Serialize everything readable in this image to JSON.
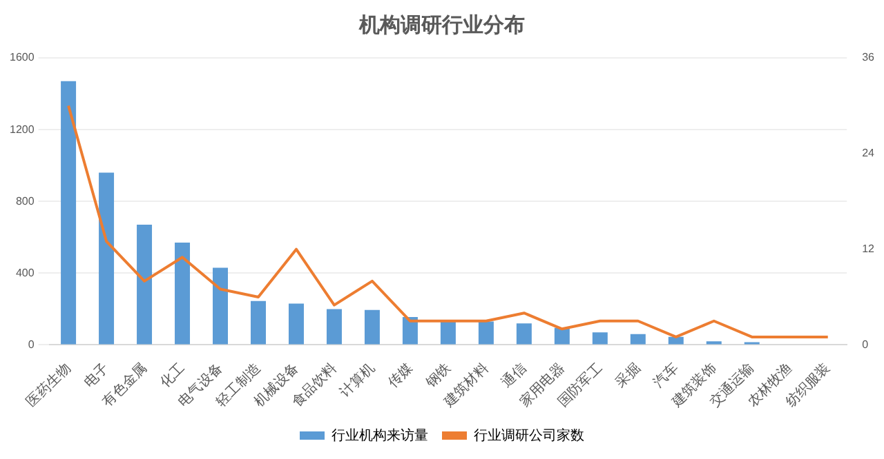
{
  "chart_data": {
    "type": "bar",
    "title": "机构调研行业分布",
    "categories": [
      "医药生物",
      "电子",
      "有色金属",
      "化工",
      "电气设备",
      "轻工制造",
      "机械设备",
      "食品饮料",
      "计算机",
      "传媒",
      "钢铁",
      "建筑材料",
      "通信",
      "家用电器",
      "国防军工",
      "采掘",
      "汽车",
      "建筑装饰",
      "交通运输",
      "农林牧渔",
      "纺织服装"
    ],
    "series": [
      {
        "name": "行业机构来访量",
        "color": "#5b9bd5",
        "values": [
          1470,
          960,
          670,
          570,
          430,
          245,
          230,
          200,
          195,
          155,
          140,
          130,
          120,
          95,
          70,
          60,
          45,
          20,
          15,
          0,
          0
        ]
      },
      {
        "name": "行业调研公司家数",
        "type": "line",
        "axis": "y2",
        "color": "#ed7d31",
        "values": [
          30,
          13,
          8,
          11,
          7,
          6,
          12,
          5,
          8,
          3,
          3,
          3,
          4,
          2,
          3,
          3,
          1,
          3,
          1,
          1,
          1
        ]
      }
    ],
    "ylim": [
      0,
      1600
    ],
    "yticks": [
      0,
      400,
      800,
      1200,
      1600
    ],
    "y2lim": [
      0,
      36
    ],
    "y2ticks": [
      0,
      12,
      24,
      36
    ],
    "grid": "y",
    "legend": "bottom",
    "marker": "none",
    "line_style": "solid"
  }
}
